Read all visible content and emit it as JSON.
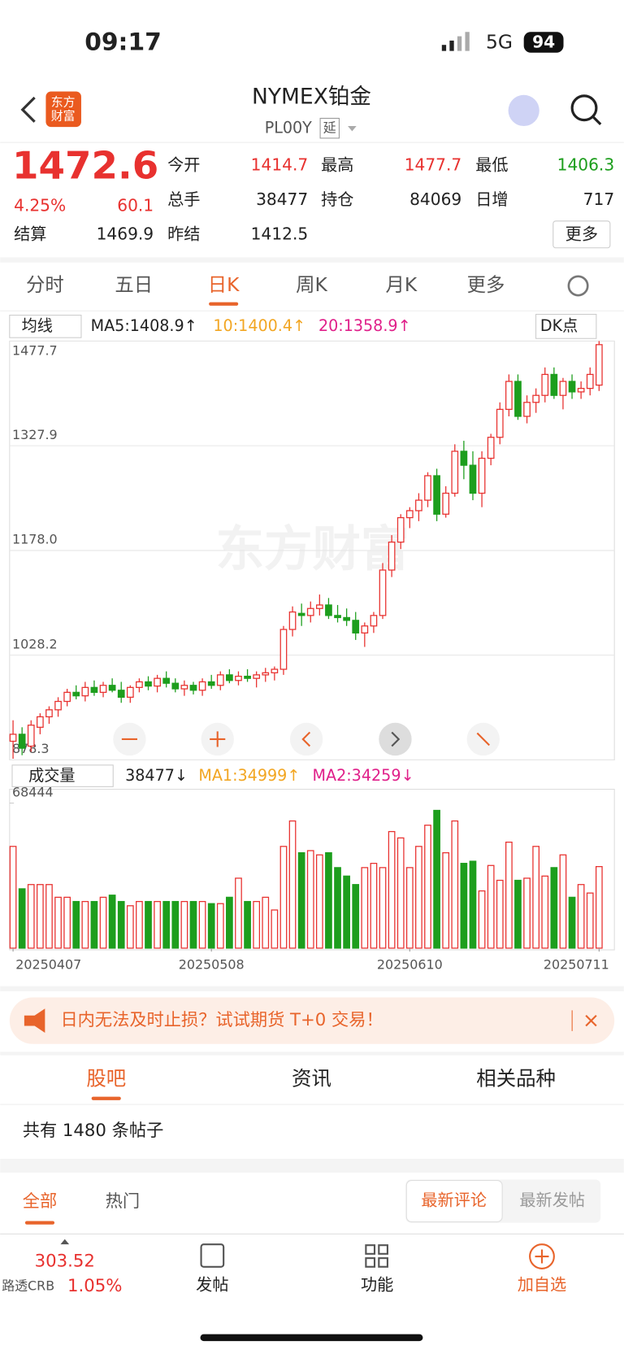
{
  "status": {
    "time": "09:17",
    "network": "5G",
    "battery": "94"
  },
  "header": {
    "logo": [
      "东方",
      "财富"
    ],
    "title": "NYMEX铂金",
    "code": "PL00Y",
    "delay": "延"
  },
  "quote": {
    "price": "1472.6",
    "pct": "4.25%",
    "change": "60.1",
    "fields": [
      [
        "今开",
        "1414.7"
      ],
      [
        "最高",
        "1477.7"
      ],
      [
        "最低",
        "1406.3"
      ],
      [
        "总手",
        "38477"
      ],
      [
        "持仓",
        "84069"
      ],
      [
        "日增",
        "717"
      ],
      [
        "结算",
        "1469.9"
      ],
      [
        "昨结",
        "1412.5"
      ]
    ],
    "more": "更多"
  },
  "tabs": [
    "分时",
    "五日",
    "日K",
    "周K",
    "月K",
    "更多"
  ],
  "indicator": {
    "menu": "均线",
    "ma5": "MA5:1408.9↑",
    "ma10": "10:1400.4↑",
    "ma20": "20:1358.9↑",
    "dk": "DK点"
  },
  "watermark": "东方财富",
  "volume_bar": {
    "menu": "成交量",
    "vol": "38477↓",
    "ma1": "MA1:34999↑",
    "ma2": "MA2:34259↓"
  },
  "chart_data": [
    {
      "type": "candlestick",
      "up_color": "#e8312f",
      "down_color": "#1d9e1d",
      "categories": [
        "20250407",
        null,
        null,
        null,
        null,
        null,
        null,
        null,
        null,
        null,
        null,
        null,
        null,
        null,
        null,
        null,
        null,
        null,
        null,
        null,
        null,
        null,
        "20250508",
        null,
        null,
        null,
        null,
        null,
        null,
        null,
        null,
        null,
        null,
        null,
        null,
        null,
        null,
        null,
        null,
        null,
        null,
        null,
        null,
        null,
        "20250610",
        null,
        null,
        null,
        null,
        null,
        null,
        null,
        null,
        null,
        null,
        null,
        null,
        null,
        null,
        null,
        null,
        null,
        null,
        null,
        null,
        "20250711"
      ],
      "open": [
        905,
        915,
        898,
        925,
        940,
        950,
        962,
        975,
        970,
        982,
        975,
        985,
        978,
        968,
        982,
        990,
        984,
        995,
        988,
        980,
        985,
        978,
        990,
        985,
        1000,
        992,
        998,
        995,
        1000,
        1003,
        1008,
        1065,
        1088,
        1085,
        1095,
        1100,
        1085,
        1082,
        1078,
        1060,
        1070,
        1085,
        1150,
        1190,
        1225,
        1235,
        1250,
        1285,
        1230,
        1260,
        1320,
        1300,
        1260,
        1310,
        1340,
        1380,
        1420,
        1370,
        1390,
        1400,
        1430,
        1400,
        1420,
        1405,
        1410,
        1414.7
      ],
      "high": [
        935,
        925,
        935,
        945,
        955,
        968,
        980,
        985,
        990,
        992,
        990,
        995,
        990,
        985,
        995,
        998,
        1000,
        1005,
        995,
        992,
        990,
        995,
        1000,
        1005,
        1008,
        1005,
        1008,
        1005,
        1010,
        1012,
        1070,
        1098,
        1102,
        1105,
        1115,
        1110,
        1100,
        1095,
        1090,
        1075,
        1090,
        1160,
        1200,
        1230,
        1240,
        1260,
        1290,
        1295,
        1270,
        1330,
        1335,
        1320,
        1320,
        1345,
        1390,
        1430,
        1430,
        1400,
        1410,
        1440,
        1440,
        1425,
        1430,
        1420,
        1440,
        1477.7
      ],
      "low": [
        880,
        885,
        890,
        915,
        930,
        940,
        955,
        965,
        962,
        970,
        968,
        975,
        960,
        960,
        975,
        978,
        975,
        982,
        975,
        970,
        972,
        970,
        980,
        978,
        988,
        985,
        990,
        982,
        990,
        992,
        1000,
        1055,
        1070,
        1075,
        1085,
        1080,
        1075,
        1070,
        1050,
        1040,
        1060,
        1080,
        1140,
        1180,
        1210,
        1220,
        1240,
        1220,
        1225,
        1255,
        1280,
        1250,
        1240,
        1300,
        1330,
        1370,
        1365,
        1360,
        1375,
        1390,
        1395,
        1380,
        1395,
        1395,
        1400,
        1406.3
      ],
      "close": [
        915,
        895,
        928,
        940,
        950,
        962,
        975,
        970,
        982,
        975,
        985,
        978,
        968,
        982,
        990,
        984,
        995,
        988,
        980,
        985,
        978,
        990,
        985,
        1000,
        992,
        998,
        995,
        1000,
        1003,
        1008,
        1065,
        1090,
        1085,
        1095,
        1100,
        1085,
        1082,
        1078,
        1060,
        1070,
        1085,
        1150,
        1190,
        1225,
        1235,
        1250,
        1285,
        1230,
        1260,
        1320,
        1300,
        1260,
        1310,
        1340,
        1380,
        1420,
        1370,
        1390,
        1400,
        1430,
        1400,
        1420,
        1405,
        1410,
        1430,
        1472.6
      ],
      "ylim": [
        878.3,
        1477.7
      ],
      "yticks": [
        1477.7,
        1327.9,
        {
          "value": 1178,
          "label": "1178.0"
        },
        1028.2,
        878.3
      ],
      "grid": true
    },
    {
      "type": "bar",
      "ylim": [
        0,
        68444
      ],
      "yticks": [
        68444
      ],
      "values": [
        48000,
        28000,
        30000,
        30000,
        30000,
        24000,
        24000,
        22000,
        22000,
        22000,
        24000,
        25000,
        22000,
        20000,
        22000,
        22000,
        22000,
        22000,
        22000,
        22000,
        22000,
        22000,
        21000,
        21000,
        24000,
        33000,
        22000,
        22000,
        24000,
        18000,
        48000,
        60000,
        45000,
        46000,
        44000,
        45000,
        38000,
        34000,
        30000,
        38000,
        40000,
        38000,
        55000,
        52000,
        38000,
        48000,
        58000,
        65000,
        45000,
        60000,
        40000,
        41000,
        27000,
        39000,
        32000,
        50000,
        32000,
        33000,
        48000,
        34000,
        38000,
        44000,
        24000,
        30000,
        26000,
        38477
      ]
    }
  ],
  "banner": "日内无法及时止损？试试期货 T+0 交易！",
  "section_tabs": [
    "股吧",
    "资讯",
    "相关品种"
  ],
  "post_count": "共有 1480 条帖子",
  "filters": [
    "全部",
    "热门"
  ],
  "sort": [
    "最新评论",
    "最新发帖"
  ],
  "bottom": {
    "index_value": "303.52",
    "index_name": "路透CRB",
    "index_pct": "1.05%",
    "items": [
      "发帖",
      "功能",
      "加自选"
    ]
  }
}
